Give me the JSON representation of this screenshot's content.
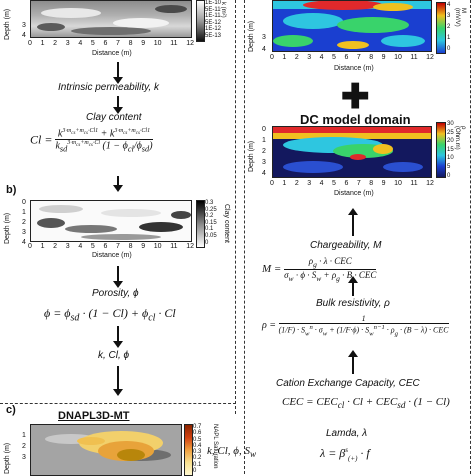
{
  "panel_a": {
    "depth_label": "Depth (m)",
    "distance_label": "Distance (m)",
    "depth_ticks": [
      "3",
      "4"
    ],
    "distance_ticks": [
      "0",
      "1",
      "2",
      "3",
      "4",
      "5",
      "6",
      "7",
      "8",
      "9",
      "10",
      "11",
      "12"
    ],
    "colorbar_ticks": [
      "1E-10",
      "5E-11",
      "1E-11",
      "5E-12",
      "1E-12",
      "5E-13"
    ],
    "colorbar_unit": "k (m²)"
  },
  "flow_left": {
    "intrinsic": "Intrinsic permeability, k",
    "clay_content": "Clay content",
    "porosity": "Porosity, ϕ",
    "kclphi": "k, Cl, ϕ"
  },
  "panel_b": {
    "label": "b)",
    "depth_label": "Depth (m)",
    "distance_label": "Distance (m)",
    "depth_ticks": [
      "0",
      "1",
      "2",
      "3",
      "4"
    ],
    "distance_ticks": [
      "0",
      "1",
      "2",
      "3",
      "4",
      "5",
      "6",
      "7",
      "8",
      "9",
      "10",
      "11",
      "12"
    ],
    "colorbar_ticks": [
      "0.3",
      "0.25",
      "0.2",
      "0.15",
      "0.1",
      "0.05",
      "0"
    ],
    "colorbar_unit": "Clay content"
  },
  "panel_c": {
    "label": "c)",
    "title": "DNAPL3D-MT",
    "depth_label": "Depth (m)",
    "depth_ticks": [
      "1",
      "2",
      "3"
    ],
    "colorbar_ticks": [
      "0.7",
      "0.6",
      "0.5",
      "0.4",
      "0.3",
      "0.2",
      "0.1",
      "0"
    ],
    "colorbar_unit": "NAPL Saturation",
    "output": "k, Cl, ϕ, S",
    "output_sub": "w"
  },
  "panel_ip": {
    "depth_label": "Depth (m)",
    "distance_label": "Distance (m)",
    "depth_ticks": [
      "3",
      "4"
    ],
    "distance_ticks": [
      "0",
      "1",
      "2",
      "3",
      "4",
      "5",
      "6",
      "7",
      "8",
      "9",
      "10",
      "11",
      "12"
    ],
    "colorbar_ticks": [
      "4",
      "3",
      "2",
      "1",
      "0"
    ],
    "colorbar_unit": "M (mV/V)"
  },
  "panel_dc": {
    "title": "DC model domain",
    "depth_label": "Depth (m)",
    "distance_label": "Distance (m)",
    "depth_ticks": [
      "0",
      "1",
      "2",
      "3",
      "4"
    ],
    "distance_ticks": [
      "0",
      "1",
      "2",
      "3",
      "4",
      "5",
      "6",
      "7",
      "8",
      "9",
      "10",
      "11",
      "12"
    ],
    "colorbar_ticks": [
      "30",
      "25",
      "20",
      "15",
      "10",
      "5",
      "0"
    ],
    "colorbar_unit": "ρ (Ohm.m)"
  },
  "flow_right": {
    "chargeability": "Chargeability, M",
    "bulk_resistivity": "Bulk resistivity, ρ",
    "cec": "Cation Exchange Capacity, CEC",
    "lamda": "Lamda, λ"
  },
  "colors": {
    "ip_low": "#1a3fd0",
    "ip_mid": "#2ec6e0",
    "ip_high": "#e0292b",
    "napl_high": "#b8860b"
  }
}
